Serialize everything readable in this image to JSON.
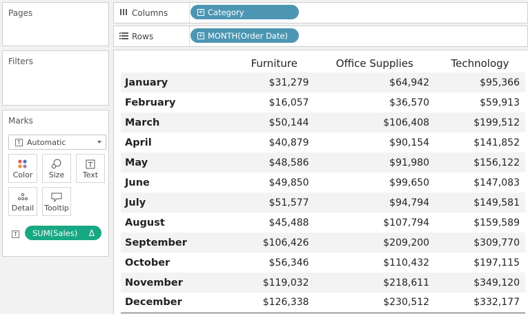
{
  "cards": {
    "pages_title": "Pages",
    "filters_title": "Filters",
    "marks_title": "Marks"
  },
  "marks": {
    "mark_type": "Automatic",
    "buttons": {
      "color": "Color",
      "size": "Size",
      "text": "Text",
      "detail": "Detail",
      "tooltip": "Tooltip"
    },
    "field_pill": "SUM(Sales)",
    "field_pill_delta": "Δ"
  },
  "shelves": {
    "columns_label": "Columns",
    "columns_pill": "Category",
    "rows_label": "Rows",
    "rows_pill": "MONTH(Order Date)"
  },
  "colors": {
    "dimension_pill": "#4c96b3",
    "measure_pill": "#18a883"
  },
  "table": {
    "headers": [
      "",
      "Furniture",
      "Office Supplies",
      "Technology"
    ],
    "rows": [
      {
        "month": "January",
        "furniture": "$31,279",
        "office": "$64,942",
        "tech": "$95,366"
      },
      {
        "month": "February",
        "furniture": "$16,057",
        "office": "$36,570",
        "tech": "$59,913"
      },
      {
        "month": "March",
        "furniture": "$50,144",
        "office": "$106,408",
        "tech": "$199,512"
      },
      {
        "month": "April",
        "furniture": "$40,879",
        "office": "$90,154",
        "tech": "$141,852"
      },
      {
        "month": "May",
        "furniture": "$48,586",
        "office": "$91,980",
        "tech": "$156,122"
      },
      {
        "month": "June",
        "furniture": "$49,850",
        "office": "$99,650",
        "tech": "$147,083"
      },
      {
        "month": "July",
        "furniture": "$51,577",
        "office": "$94,794",
        "tech": "$149,581"
      },
      {
        "month": "August",
        "furniture": "$45,488",
        "office": "$107,794",
        "tech": "$159,589"
      },
      {
        "month": "September",
        "furniture": "$106,426",
        "office": "$209,200",
        "tech": "$309,770"
      },
      {
        "month": "October",
        "furniture": "$56,346",
        "office": "$110,432",
        "tech": "$197,115"
      },
      {
        "month": "November",
        "furniture": "$119,032",
        "office": "$218,611",
        "tech": "$349,120"
      },
      {
        "month": "December",
        "furniture": "$126,338",
        "office": "$230,512",
        "tech": "$332,177"
      }
    ]
  }
}
